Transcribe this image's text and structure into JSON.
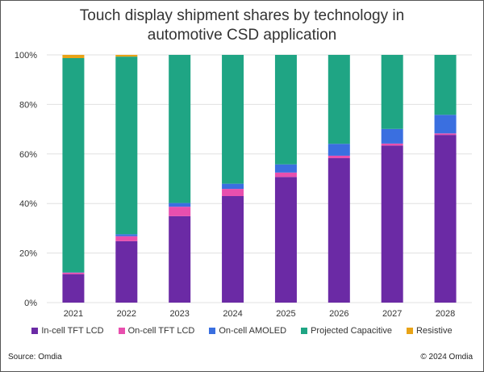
{
  "chart_data": {
    "type": "bar",
    "stacked": true,
    "title": "Touch display shipment shares by technology in automotive CSD application",
    "title_lines": [
      "Touch display shipment shares by technology in",
      "automotive CSD application"
    ],
    "categories": [
      "2021",
      "2022",
      "2023",
      "2024",
      "2025",
      "2026",
      "2027",
      "2028"
    ],
    "ylim": [
      0,
      100
    ],
    "yticks": [
      "0%",
      "20%",
      "40%",
      "60%",
      "80%",
      "100%"
    ],
    "ytick_values": [
      0,
      20,
      40,
      60,
      80,
      100
    ],
    "grid": true,
    "legend_position": "bottom",
    "series": [
      {
        "name": "In-cell TFT LCD",
        "color": "#6b2aa5",
        "values": [
          11.5,
          24.8,
          34.9,
          43.0,
          50.7,
          58.3,
          63.4,
          67.7
        ]
      },
      {
        "name": "On-cell TFT LCD",
        "color": "#e84fae",
        "values": [
          0.6,
          2.0,
          3.8,
          2.9,
          1.8,
          1.0,
          0.8,
          0.6
        ]
      },
      {
        "name": "On-cell AMOLED",
        "color": "#3a6fe0",
        "values": [
          0.1,
          0.8,
          1.5,
          2.1,
          3.3,
          4.8,
          5.9,
          7.5
        ]
      },
      {
        "name": "Projected Capacitive",
        "color": "#1fa584",
        "values": [
          86.5,
          71.7,
          59.8,
          52.0,
          44.2,
          35.9,
          29.9,
          24.2
        ]
      },
      {
        "name": "Resistive",
        "color": "#e8a317",
        "values": [
          1.3,
          0.7,
          0,
          0,
          0,
          0,
          0,
          0
        ]
      }
    ]
  },
  "footer": {
    "source": "Source: Omdia",
    "copyright": "© 2024 Omdia"
  }
}
